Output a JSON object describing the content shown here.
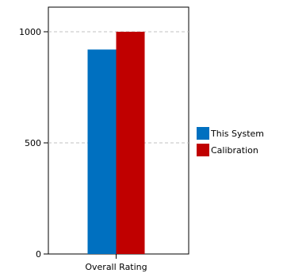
{
  "chart_data": {
    "type": "bar",
    "categories": [
      "Overall Rating"
    ],
    "series": [
      {
        "name": "This System",
        "values": [
          920
        ],
        "color": "#0070c0"
      },
      {
        "name": "Calibration",
        "values": [
          1000
        ],
        "color": "#c00000"
      }
    ],
    "yticks": [
      0,
      500,
      1000
    ],
    "ylim": [
      0,
      1090
    ],
    "grid": "horizontal dashed",
    "legend_position": "right"
  }
}
